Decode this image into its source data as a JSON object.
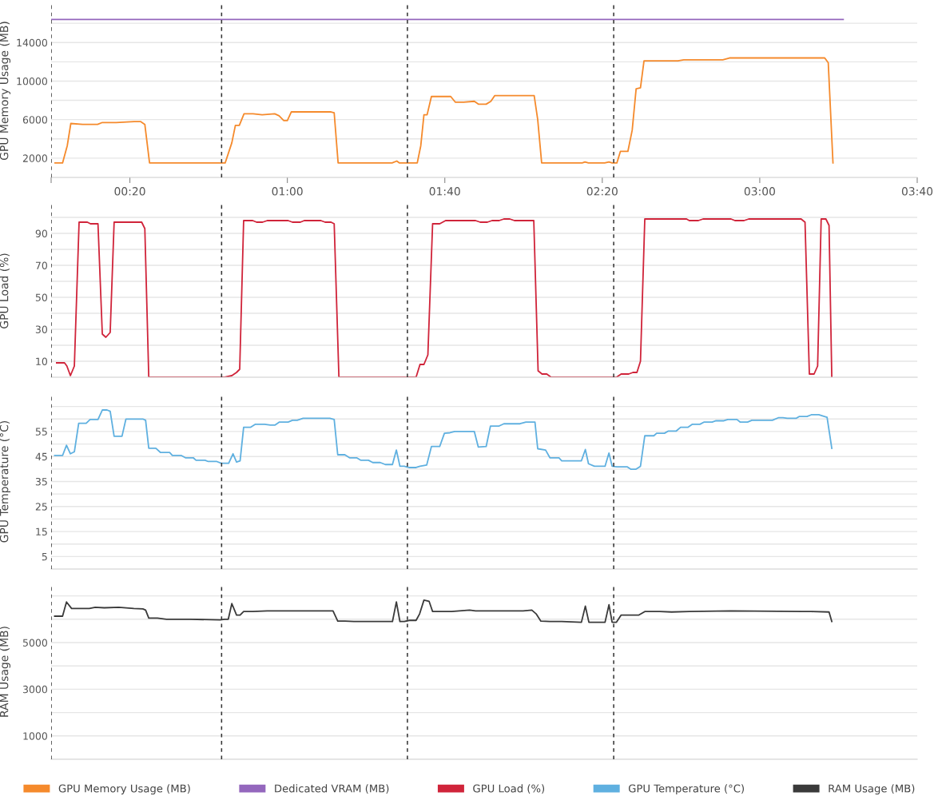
{
  "chart_data": [
    {
      "type": "line",
      "ylabel": "GPU Memory Usage (MB)",
      "xlim": [
        0,
        220
      ],
      "ylim": [
        0,
        18000
      ],
      "xticks": [
        {
          "value": 0,
          "label": null
        },
        {
          "value": 20,
          "label": "00:20"
        },
        {
          "value": 60,
          "label": "01:00"
        },
        {
          "value": 100,
          "label": "01:40"
        },
        {
          "value": 140,
          "label": "02:20"
        },
        {
          "value": 180,
          "label": "03:00"
        },
        {
          "value": 220,
          "label": "03:40"
        }
      ],
      "yticks": [
        2000,
        {
          "value": 4000,
          "label": null
        },
        6000,
        {
          "value": 8000,
          "label": null
        },
        10000,
        {
          "value": 12000,
          "label": null
        },
        14000,
        {
          "value": 16000,
          "label": null
        }
      ],
      "grid": "y",
      "legend": "bottom",
      "marker": "none",
      "line_style": "solid",
      "ref_lines": [
        {
          "axis": "x",
          "value": 0,
          "color": "#333333",
          "line_style": "dashed"
        },
        {
          "axis": "x",
          "value": 43.3,
          "color": "#333333",
          "line_style": "dashed"
        },
        {
          "axis": "x",
          "value": 90.5,
          "color": "#333333",
          "line_style": "dashed"
        },
        {
          "axis": "x",
          "value": 142.9,
          "color": "#333333",
          "line_style": "dashed"
        }
      ],
      "series": [
        {
          "name": "GPU Memory Usage (MB)",
          "color": "#f58a2c",
          "x": [
            1.0,
            2.9,
            4.1,
            5.0,
            8.0,
            11.8,
            13.0,
            16.5,
            21.1,
            22.7,
            23.8,
            25.0,
            42.8,
            44.2,
            45.9,
            46.8,
            47.8,
            49.0,
            51.3,
            53.6,
            56.8,
            57.9,
            59.1,
            60.0,
            61.0,
            71.1,
            71.9,
            72.9,
            86.6,
            87.8,
            88.5,
            89.7,
            91.5,
            93.0,
            93.9,
            94.7,
            95.5,
            96.6,
            101.5,
            102.7,
            104.8,
            107.5,
            108.6,
            110.5,
            111.7,
            112.7,
            119.6,
            122.7,
            123.6,
            124.6,
            134.9,
            135.6,
            136.5,
            140.6,
            141.7,
            142.5,
            143.7,
            144.6,
            146.5,
            147.6,
            148.6,
            149.7,
            150.6,
            159.2,
            160.7,
            170.6,
            172.3,
            196.5,
            197.4,
            198.6
          ],
          "values": [
            1500,
            1500,
            3300,
            5600,
            5500,
            5500,
            5700,
            5700,
            5800,
            5800,
            5500,
            1500,
            1500,
            1500,
            3600,
            5400,
            5400,
            6600,
            6600,
            6500,
            6600,
            6400,
            5900,
            5900,
            6800,
            6800,
            6700,
            1500,
            1500,
            1700,
            1500,
            1500,
            1500,
            1500,
            3300,
            6500,
            6500,
            8400,
            8400,
            7800,
            7800,
            7900,
            7600,
            7600,
            7900,
            8500,
            8500,
            8500,
            6000,
            1500,
            1500,
            1600,
            1500,
            1500,
            1600,
            1500,
            1500,
            2700,
            2700,
            4900,
            9200,
            9300,
            12100,
            12100,
            12200,
            12200,
            12400,
            12400,
            11900,
            1500
          ]
        },
        {
          "name": "Dedicated VRAM (MB)",
          "color": "#9467bd",
          "x": [
            0,
            201.2
          ],
          "values": [
            16400,
            16400
          ]
        }
      ]
    },
    {
      "type": "line",
      "ylabel": "GPU Load (%)",
      "xlim": [
        0,
        220
      ],
      "ylim": [
        0,
        108
      ],
      "tick_labels": "y",
      "yticks": [
        10,
        {
          "value": 20,
          "label": null
        },
        30,
        {
          "value": 40,
          "label": null
        },
        50,
        {
          "value": 60,
          "label": null
        },
        70,
        {
          "value": 80,
          "label": null
        },
        90,
        {
          "value": 100,
          "label": null
        }
      ],
      "grid": "y",
      "legend": "bottom",
      "marker": "none",
      "line_style": "solid",
      "ref_lines": [
        {
          "axis": "x",
          "value": 0,
          "color": "#333333",
          "line_style": "dashed"
        },
        {
          "axis": "x",
          "value": 43.3,
          "color": "#333333",
          "line_style": "dashed"
        },
        {
          "axis": "x",
          "value": 90.5,
          "color": "#333333",
          "line_style": "dashed"
        },
        {
          "axis": "x",
          "value": 142.9,
          "color": "#333333",
          "line_style": "dashed"
        }
      ],
      "series": [
        {
          "name": "GPU Load (%)",
          "color": "#d0243a",
          "x": [
            1.4,
            3.4,
            4.0,
            4.9,
            5.9,
            7.1,
            9.2,
            10.0,
            11.9,
            13.0,
            13.9,
            15.0,
            16.0,
            23.0,
            23.8,
            24.8,
            42.9,
            44.1,
            45.9,
            47.1,
            47.9,
            48.9,
            51.2,
            52.2,
            53.7,
            54.9,
            60.2,
            61.3,
            63.3,
            64.3,
            68.5,
            69.6,
            71.1,
            71.9,
            73.1,
            89.7,
            90.9,
            92.7,
            93.7,
            94.7,
            95.7,
            96.9,
            98.7,
            100.2,
            107.8,
            109.0,
            110.8,
            112.0,
            113.8,
            115.0,
            116.5,
            117.7,
            122.6,
            123.7,
            124.7,
            125.9,
            127.0,
            142.5,
            143.6,
            144.8,
            146.7,
            147.8,
            148.8,
            149.7,
            150.8,
            161.4,
            162.1,
            164.4,
            165.6,
            172.7,
            173.7,
            176.0,
            177.2,
            190.5,
            191.5,
            192.6,
            193.8,
            194.7,
            195.6,
            196.8,
            197.6,
            198.3
          ],
          "values": [
            9,
            9,
            7,
            1,
            7,
            97,
            97,
            96,
            96,
            27,
            25,
            28,
            97,
            97,
            93,
            0,
            0,
            0,
            1,
            3,
            5,
            98,
            98,
            97,
            97,
            98,
            98,
            97,
            97,
            98,
            98,
            97,
            97,
            96,
            0,
            0,
            0,
            0,
            8,
            8,
            14,
            96,
            96,
            98,
            98,
            97,
            97,
            98,
            98,
            99,
            99,
            98,
            98,
            4,
            2,
            2,
            0,
            0,
            0,
            2,
            2,
            3,
            3,
            10,
            99,
            99,
            98,
            98,
            99,
            99,
            98,
            98,
            99,
            99,
            97,
            2,
            2,
            7,
            99,
            99,
            95,
            0
          ]
        }
      ]
    },
    {
      "type": "line",
      "ylabel": "GPU Temperature (°C)",
      "xlim": [
        0,
        220
      ],
      "ylim": [
        0,
        70
      ],
      "tick_labels": "y",
      "yticks": [
        5,
        {
          "value": 10,
          "label": null
        },
        15,
        {
          "value": 20,
          "label": null
        },
        25,
        {
          "value": 30,
          "label": null
        },
        35,
        {
          "value": 40,
          "label": null
        },
        45,
        {
          "value": 50,
          "label": null
        },
        55,
        {
          "value": 60,
          "label": null
        },
        {
          "value": 65,
          "label": null
        }
      ],
      "grid": "y",
      "legend": "bottom",
      "marker": "none",
      "line_style": "solid",
      "ref_lines": [
        {
          "axis": "x",
          "value": 0,
          "color": "#333333",
          "line_style": "dashed"
        },
        {
          "axis": "x",
          "value": 43.3,
          "color": "#333333",
          "line_style": "dashed"
        },
        {
          "axis": "x",
          "value": 90.5,
          "color": "#333333",
          "line_style": "dashed"
        },
        {
          "axis": "x",
          "value": 142.9,
          "color": "#333333",
          "line_style": "dashed"
        }
      ],
      "series": [
        {
          "name": "GPU Temperature (°C)",
          "color": "#5fb0e0",
          "x": [
            0.9,
            2.9,
            3.9,
            4.9,
            5.9,
            7.0,
            8.9,
            9.9,
            11.9,
            13.0,
            14.2,
            15.0,
            16.0,
            18.0,
            19.0,
            23.3,
            24.0,
            24.8,
            26.6,
            27.8,
            30.1,
            30.8,
            33.1,
            34.1,
            36.1,
            36.8,
            39.1,
            39.9,
            42.1,
            43.2,
            44.1,
            45.1,
            46.2,
            47.1,
            48.0,
            48.9,
            50.7,
            51.9,
            54.2,
            55.7,
            56.9,
            58.0,
            60.2,
            61.3,
            62.5,
            64.0,
            70.8,
            71.9,
            72.8,
            74.6,
            75.8,
            77.6,
            78.7,
            80.6,
            81.7,
            83.6,
            84.9,
            86.7,
            87.7,
            88.6,
            89.7,
            90.9,
            92.7,
            93.7,
            95.4,
            96.6,
            98.7,
            99.9,
            101.3,
            102.5,
            107.5,
            108.5,
            110.5,
            111.6,
            113.8,
            115.0,
            119.1,
            120.6,
            122.9,
            123.6,
            125.6,
            126.7,
            129.0,
            129.7,
            134.7,
            135.7,
            136.5,
            138.0,
            140.7,
            141.7,
            142.5,
            143.7,
            146.3,
            147.3,
            148.5,
            149.7,
            150.8,
            153.1,
            153.8,
            155.8,
            156.8,
            158.8,
            159.9,
            161.8,
            162.9,
            164.8,
            165.9,
            167.9,
            168.9,
            170.9,
            171.9,
            174.2,
            175.0,
            176.9,
            178.0,
            183.2,
            184.7,
            185.9,
            187.0,
            189.3,
            190.0,
            192.0,
            193.1,
            195.0,
            196.1,
            197.1,
            198.3
          ],
          "values": [
            45.4,
            45.4,
            49.5,
            46.1,
            46.9,
            58.3,
            58.3,
            59.8,
            59.8,
            63.6,
            63.6,
            63.1,
            53.1,
            53.1,
            60.0,
            60.0,
            59.5,
            48.3,
            48.3,
            46.6,
            46.6,
            45.4,
            45.4,
            44.5,
            44.5,
            43.5,
            43.5,
            43.0,
            43.0,
            42.3,
            42.3,
            42.3,
            46.1,
            42.8,
            43.3,
            56.7,
            56.7,
            57.9,
            57.9,
            57.6,
            57.6,
            58.8,
            58.8,
            59.5,
            59.5,
            60.3,
            60.3,
            59.8,
            45.7,
            45.7,
            44.5,
            44.5,
            43.5,
            43.5,
            42.6,
            42.6,
            41.8,
            41.8,
            47.6,
            41.1,
            41.1,
            40.6,
            40.6,
            41.1,
            41.6,
            49.0,
            49.0,
            54.3,
            54.5,
            55.0,
            55.0,
            48.8,
            49.0,
            57.2,
            57.2,
            58.1,
            58.1,
            58.8,
            58.8,
            48.1,
            47.6,
            44.5,
            44.5,
            43.3,
            43.3,
            47.8,
            42.1,
            41.1,
            41.1,
            46.4,
            41.1,
            40.9,
            40.9,
            39.9,
            39.9,
            41.1,
            53.3,
            53.3,
            54.3,
            54.3,
            55.2,
            55.2,
            56.7,
            56.7,
            57.9,
            57.9,
            58.8,
            58.8,
            59.3,
            59.3,
            59.8,
            59.8,
            58.8,
            58.8,
            59.5,
            59.5,
            60.5,
            60.5,
            60.3,
            60.3,
            61.0,
            61.0,
            61.7,
            61.7,
            61.2,
            60.7,
            48.3
          ]
        }
      ]
    },
    {
      "type": "line",
      "ylabel": "RAM Usage (MB)",
      "xlim": [
        0,
        220
      ],
      "ylim": [
        0,
        7500
      ],
      "tick_labels": "y",
      "yticks": [
        1000,
        {
          "value": 2000,
          "label": null
        },
        3000,
        {
          "value": 4000,
          "label": null
        },
        5000,
        {
          "value": 6000,
          "label": null
        },
        {
          "value": 7000,
          "label": null
        }
      ],
      "grid": "y",
      "legend": "bottom",
      "marker": "none",
      "line_style": "solid",
      "ref_lines": [
        {
          "axis": "x",
          "value": 0,
          "color": "#333333",
          "line_style": "dashed"
        },
        {
          "axis": "x",
          "value": 43.3,
          "color": "#333333",
          "line_style": "dashed"
        },
        {
          "axis": "x",
          "value": 90.5,
          "color": "#333333",
          "line_style": "dashed"
        },
        {
          "axis": "x",
          "value": 142.9,
          "color": "#333333",
          "line_style": "dashed"
        }
      ],
      "series": [
        {
          "name": "RAM Usage (MB)",
          "color": "#3a3a3a",
          "x": [
            0.9,
            2.9,
            3.9,
            5.2,
            9.7,
            11.2,
            13.5,
            17.2,
            21.0,
            23.3,
            24.0,
            24.8,
            27.0,
            29.3,
            35.3,
            42.9,
            44.1,
            45.0,
            45.9,
            47.1,
            48.0,
            48.9,
            51.2,
            54.9,
            71.6,
            72.8,
            74.6,
            76.9,
            86.7,
            87.7,
            88.6,
            89.7,
            90.9,
            92.7,
            93.6,
            94.7,
            96.0,
            96.9,
            101.7,
            106.3,
            107.8,
            119.9,
            122.1,
            123.2,
            124.4,
            126.7,
            129.7,
            134.7,
            135.7,
            136.6,
            140.7,
            141.7,
            142.5,
            143.6,
            144.8,
            149.3,
            150.8,
            154.6,
            157.6,
            162.1,
            172.7,
            190.8,
            193.1,
            197.6,
            198.3
          ],
          "values": [
            6130,
            6130,
            6740,
            6460,
            6460,
            6510,
            6490,
            6510,
            6460,
            6440,
            6390,
            6050,
            6050,
            6000,
            6000,
            5970,
            6000,
            6000,
            6670,
            6180,
            6180,
            6330,
            6330,
            6360,
            6360,
            5920,
            5920,
            5900,
            5900,
            6740,
            5900,
            5900,
            5950,
            5950,
            6230,
            6820,
            6770,
            6330,
            6330,
            6390,
            6360,
            6360,
            6390,
            6230,
            5920,
            5900,
            5900,
            5870,
            6560,
            5870,
            5870,
            6620,
            5870,
            5870,
            6180,
            6180,
            6330,
            6330,
            6310,
            6330,
            6360,
            6330,
            6330,
            6310,
            5900
          ]
        }
      ]
    }
  ]
}
